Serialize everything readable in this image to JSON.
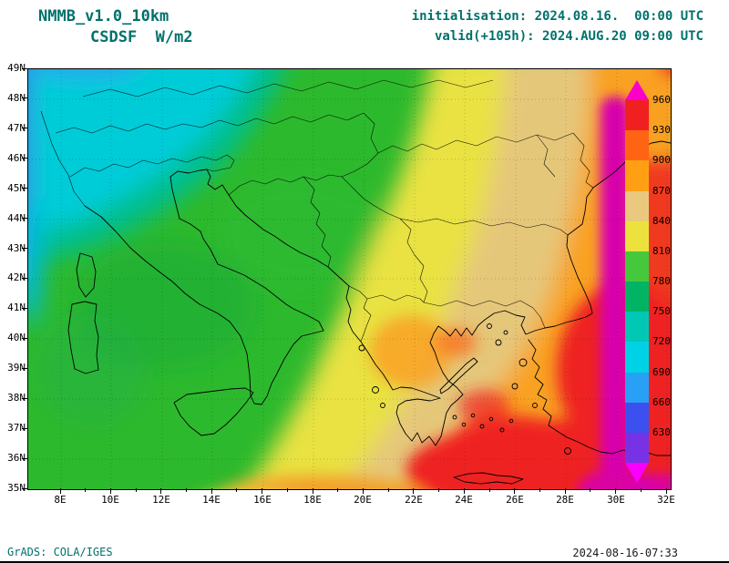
{
  "header": {
    "model_name": "NMMB_v1.0_10km",
    "variable_label": "CSDSF  W/m2",
    "initialisation": "initialisation: 2024.08.16.  00:00 UTC",
    "valid": "valid(+105h): 2024.AUG.20 09:00 UTC"
  },
  "axes": {
    "lat_labels": [
      "49N",
      "48N",
      "47N",
      "46N",
      "45N",
      "44N",
      "43N",
      "42N",
      "41N",
      "40N",
      "39N",
      "38N",
      "37N",
      "36N",
      "35N"
    ],
    "lon_labels": [
      "8E",
      "10E",
      "12E",
      "14E",
      "16E",
      "18E",
      "20E",
      "22E",
      "24E",
      "26E",
      "28E",
      "30E",
      "32E"
    ]
  },
  "colorbar": {
    "units": "W/m2",
    "labels": [
      "960",
      "930",
      "900",
      "870",
      "840",
      "810",
      "780",
      "750",
      "720",
      "690",
      "660",
      "630"
    ],
    "cap_top_color": "#fa00c8",
    "cap_bottom_color": "#fa00fa",
    "segment_colors": [
      "#f02020",
      "#ff6414",
      "#ffa014",
      "#eac87d",
      "#ece23e",
      "#46c83c",
      "#00b464",
      "#00c8b4",
      "#00d2e6",
      "#28a0f5",
      "#3c50f0",
      "#7832e6"
    ]
  },
  "footer": {
    "credit": "GrADS: COLA/IGES",
    "timestamp": "2024-08-16-07:33"
  },
  "chart_data": {
    "type": "heatmap",
    "title": "NMMB_v1.0_10km",
    "variable": "CSDSF",
    "units": "W/m2",
    "initialisation": "2024.08.16. 00:00 UTC",
    "valid": "+105h: 2024.AUG.20 09:00 UTC",
    "x_axis": {
      "label": "longitude",
      "min": "8E",
      "max": "32E",
      "tick_step_deg": 2
    },
    "y_axis": {
      "label": "latitude",
      "min": "35N",
      "max": "49N",
      "tick_step_deg": 1
    },
    "levels_wm2": [
      630,
      660,
      690,
      720,
      750,
      780,
      810,
      840,
      870,
      900,
      930,
      960
    ],
    "palette_low_to_high": [
      "#7832e6",
      "#3c50f0",
      "#28a0f5",
      "#00d2e6",
      "#00c8b4",
      "#00b464",
      "#46c83c",
      "#2db92d",
      "#ece23e",
      "#eac87d",
      "#ffa014",
      "#ff6414",
      "#f02020",
      "#fa00c8"
    ],
    "legend_position": "right",
    "grid": true,
    "field_summary": [
      {
        "region": "NW corner / Alps (8-13E, 45-49N)",
        "csdsf_wm2": "660-720"
      },
      {
        "region": "far west edge (8E, 42-49N)",
        "csdsf_wm2": "630-690"
      },
      {
        "region": "Italy and central Europe",
        "csdsf_wm2": "750-810"
      },
      {
        "region": "central Balkans / Pannonia",
        "csdsf_wm2": "810-870"
      },
      {
        "region": "Greece, Aegean, W Turkey",
        "csdsf_wm2": "870-930"
      },
      {
        "region": "S Aegean and SE corner",
        "csdsf_wm2": "930-960"
      },
      {
        "region": "eastern edge strip (~30E)",
        "csdsf_wm2": ">960"
      }
    ],
    "attribution": "GrADS: COLA/IGES"
  }
}
